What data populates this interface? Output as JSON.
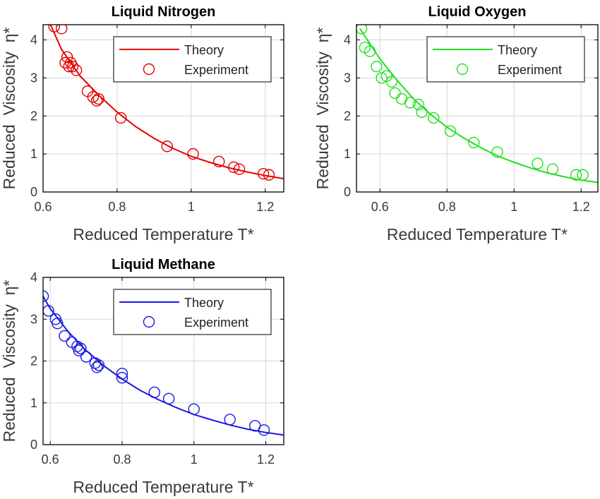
{
  "chart_data": [
    {
      "type": "line",
      "title": "Liquid Nitrogen",
      "xlabel": "Reduced Temperature T*",
      "ylabel": "Reduced  Viscosity  η*",
      "xlim": [
        0.6,
        1.25
      ],
      "ylim": [
        0,
        4.4
      ],
      "xticks": [
        0.6,
        0.8,
        1,
        1.2
      ],
      "yticks": [
        0,
        1,
        2,
        3,
        4
      ],
      "grid": true,
      "legend_position": "top-right",
      "color": "#e60000",
      "series": [
        {
          "name": "Theory",
          "kind": "line",
          "x": [
            0.62,
            0.65,
            0.7,
            0.75,
            0.8,
            0.85,
            0.9,
            0.95,
            1.0,
            1.05,
            1.1,
            1.15,
            1.2,
            1.25
          ],
          "y": [
            4.4,
            3.75,
            3.05,
            2.55,
            2.1,
            1.72,
            1.41,
            1.15,
            0.94,
            0.78,
            0.64,
            0.53,
            0.43,
            0.35
          ]
        },
        {
          "name": "Experiment",
          "kind": "scatter",
          "x": [
            0.63,
            0.65,
            0.66,
            0.665,
            0.67,
            0.675,
            0.68,
            0.69,
            0.72,
            0.735,
            0.745,
            0.75,
            0.81,
            0.935,
            1.005,
            1.075,
            1.115,
            1.13,
            1.195,
            1.21
          ],
          "y": [
            4.35,
            4.3,
            3.4,
            3.55,
            3.3,
            3.4,
            3.3,
            3.2,
            2.65,
            2.5,
            2.4,
            2.45,
            1.95,
            1.2,
            1.0,
            0.8,
            0.65,
            0.6,
            0.48,
            0.45
          ]
        }
      ]
    },
    {
      "type": "line",
      "title": "Liquid Oxygen",
      "xlabel": "Reduced Temperature T*",
      "ylabel": "Reduced  Viscosity  η*",
      "xlim": [
        0.53,
        1.25
      ],
      "ylim": [
        0,
        4.4
      ],
      "xticks": [
        0.6,
        0.8,
        1,
        1.2
      ],
      "yticks": [
        0,
        1,
        2,
        3,
        4
      ],
      "grid": true,
      "legend_position": "top-right",
      "color": "#22e022",
      "series": [
        {
          "name": "Theory",
          "kind": "line",
          "x": [
            0.54,
            0.6,
            0.65,
            0.7,
            0.75,
            0.8,
            0.85,
            0.9,
            0.95,
            1.0,
            1.05,
            1.1,
            1.15,
            1.2,
            1.25
          ],
          "y": [
            4.3,
            3.5,
            2.95,
            2.45,
            2.05,
            1.7,
            1.42,
            1.17,
            0.95,
            0.78,
            0.63,
            0.5,
            0.4,
            0.31,
            0.25
          ]
        },
        {
          "name": "Experiment",
          "kind": "scatter",
          "x": [
            0.545,
            0.555,
            0.57,
            0.59,
            0.605,
            0.62,
            0.635,
            0.645,
            0.665,
            0.69,
            0.715,
            0.725,
            0.76,
            0.81,
            0.88,
            0.95,
            1.07,
            1.115,
            1.185,
            1.205
          ],
          "y": [
            4.3,
            3.8,
            3.7,
            3.3,
            3.0,
            3.05,
            2.9,
            2.6,
            2.45,
            2.35,
            2.3,
            2.1,
            1.95,
            1.6,
            1.3,
            1.05,
            0.75,
            0.6,
            0.45,
            0.45
          ]
        }
      ]
    },
    {
      "type": "line",
      "title": "Liquid Methane",
      "xlabel": "Reduced Temperature T*",
      "ylabel": "Reduced  Viscosity  η*",
      "xlim": [
        0.58,
        1.25
      ],
      "ylim": [
        0,
        4
      ],
      "xticks": [
        0.6,
        0.8,
        1,
        1.2
      ],
      "yticks": [
        0,
        1,
        2,
        3,
        4
      ],
      "grid": true,
      "legend_position": "top-right",
      "color": "#1a1adf",
      "series": [
        {
          "name": "Theory",
          "kind": "line",
          "x": [
            0.58,
            0.6,
            0.65,
            0.7,
            0.75,
            0.8,
            0.85,
            0.9,
            0.95,
            1.0,
            1.05,
            1.1,
            1.15,
            1.2,
            1.25
          ],
          "y": [
            3.55,
            3.25,
            2.7,
            2.25,
            1.88,
            1.57,
            1.3,
            1.08,
            0.89,
            0.72,
            0.59,
            0.47,
            0.37,
            0.29,
            0.23
          ]
        },
        {
          "name": "Experiment",
          "kind": "scatter",
          "x": [
            0.58,
            0.595,
            0.615,
            0.62,
            0.64,
            0.66,
            0.675,
            0.68,
            0.685,
            0.7,
            0.725,
            0.73,
            0.735,
            0.8,
            0.8,
            0.89,
            0.93,
            1.0,
            1.1,
            1.17,
            1.195
          ],
          "y": [
            3.55,
            3.2,
            3.0,
            2.9,
            2.6,
            2.45,
            2.35,
            2.25,
            2.3,
            2.1,
            1.95,
            1.85,
            1.9,
            1.7,
            1.6,
            1.25,
            1.1,
            0.85,
            0.6,
            0.45,
            0.35
          ]
        }
      ]
    }
  ]
}
